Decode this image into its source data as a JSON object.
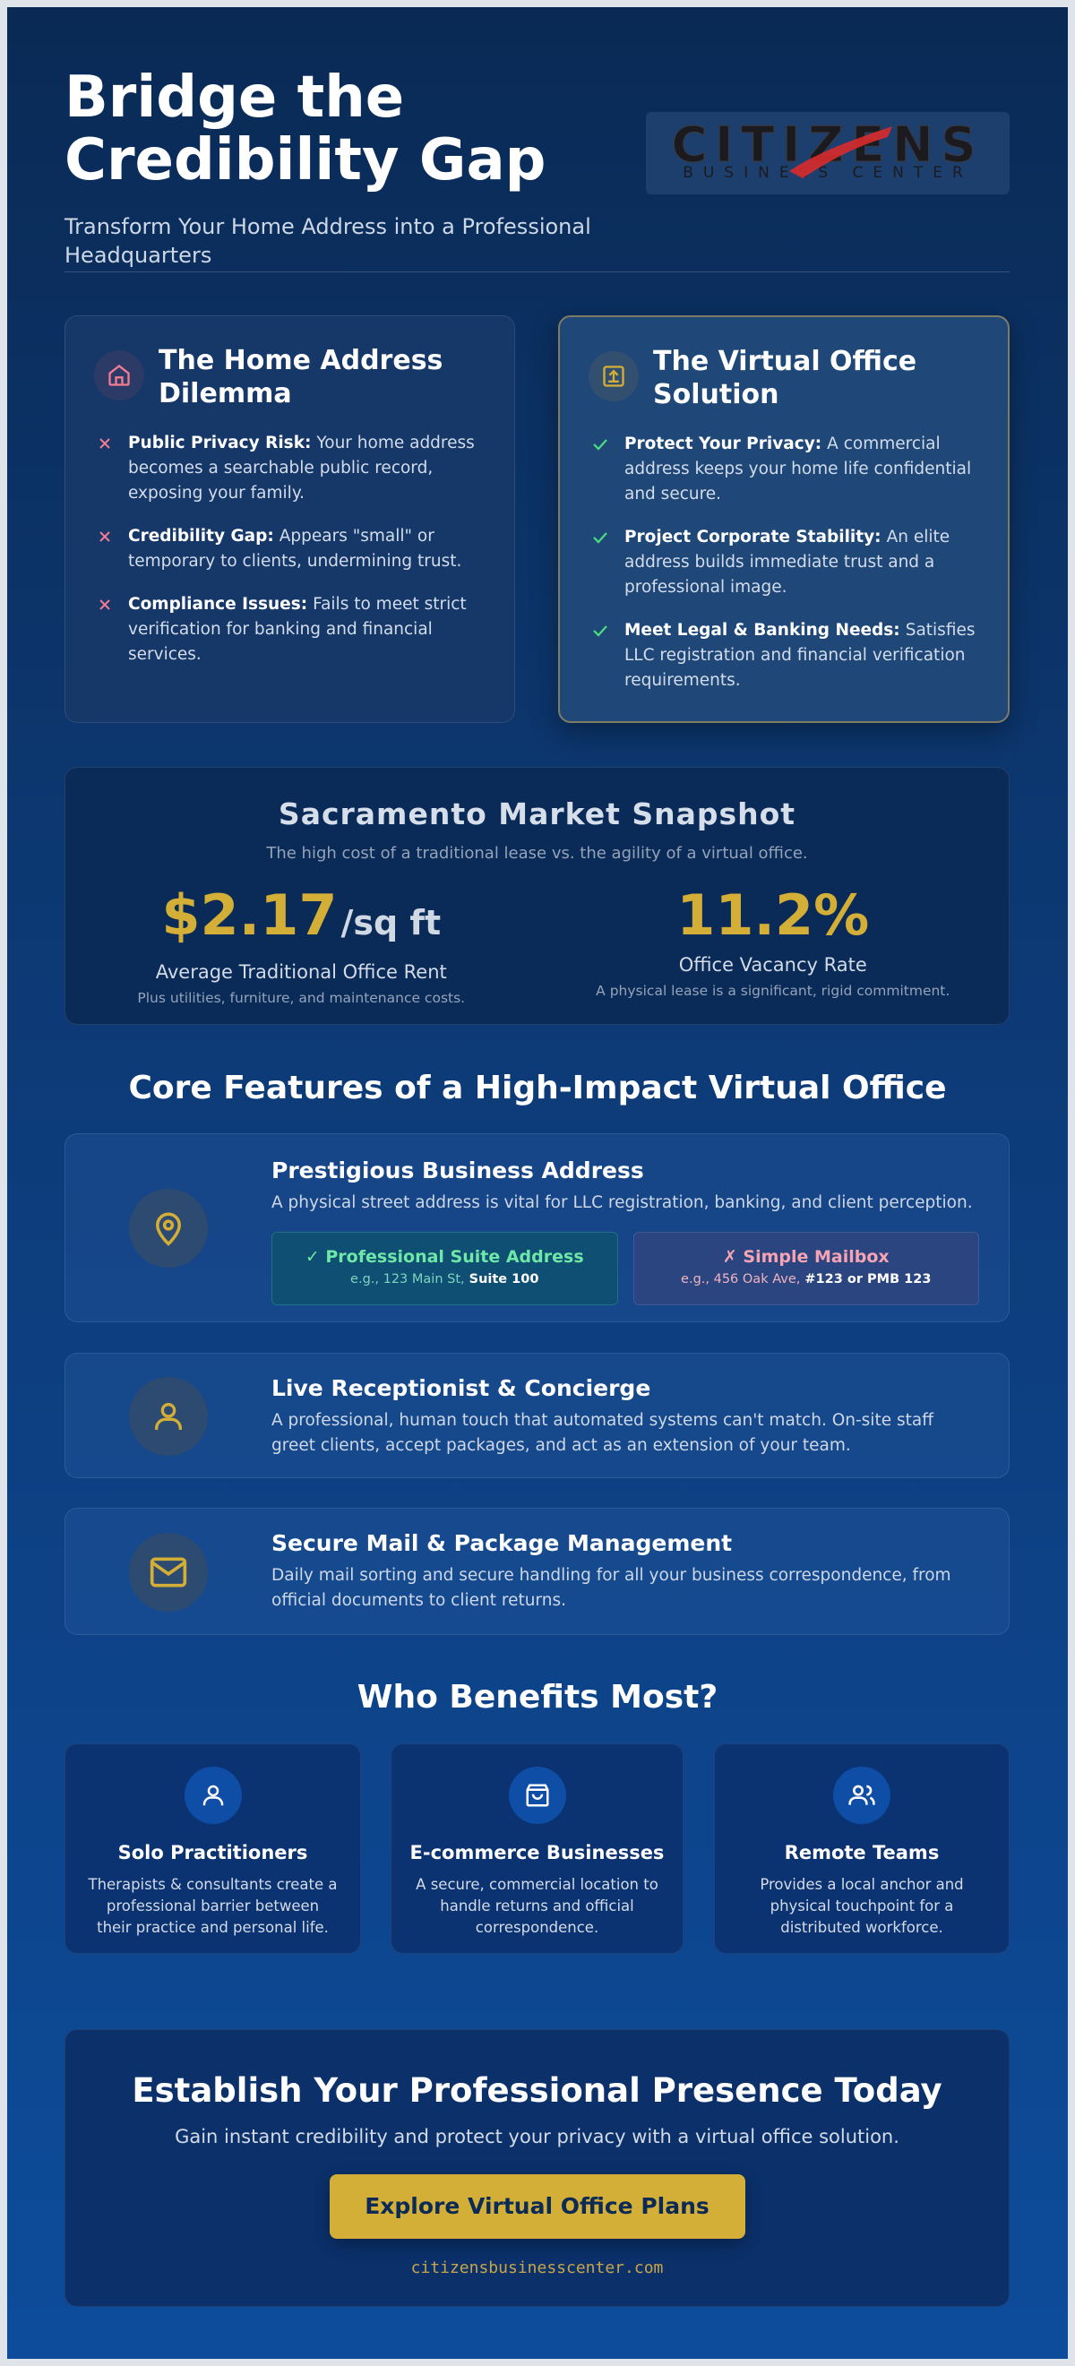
{
  "header": {
    "title": "Bridge the Credibility Gap",
    "subtitle": "Transform Your Home Address into a Professional Headquarters",
    "logo": {
      "name": "CITIZENS",
      "tagline": "BUSINESS CENTER"
    }
  },
  "problem": {
    "title": "The Home Address Dilemma",
    "items": [
      {
        "label": "Public Privacy Risk:",
        "text": "Your home address becomes a searchable public record, exposing your family."
      },
      {
        "label": "Credibility Gap:",
        "text": "Appears \"small\" or temporary to clients, undermining trust."
      },
      {
        "label": "Compliance Issues:",
        "text": "Fails to meet strict verification for banking and financial services."
      }
    ]
  },
  "solution": {
    "title": "The Virtual Office Solution",
    "items": [
      {
        "label": "Protect Your Privacy:",
        "text": "A commercial address keeps your home life confidential and secure."
      },
      {
        "label": "Project Corporate Stability:",
        "text": "An elite address builds immediate trust and a professional image."
      },
      {
        "label": "Meet Legal & Banking Needs:",
        "text": "Satisfies LLC registration and financial verification requirements."
      }
    ]
  },
  "market": {
    "title": "Sacramento Market Snapshot",
    "subtitle": "The high cost of a traditional lease vs. the agility of a virtual office.",
    "stats": [
      {
        "value": "$2.17",
        "unit": "/sq ft",
        "label": "Average Traditional Office Rent",
        "note": "Plus utilities, furniture, and maintenance costs."
      },
      {
        "value": "11.2%",
        "label": "Office Vacancy Rate",
        "note": "A physical lease is a significant, rigid commitment."
      }
    ]
  },
  "features": {
    "title": "Core Features of a High-Impact Virtual Office",
    "items": [
      {
        "title": "Prestigious Business Address",
        "text": "A physical street address is vital for LLC registration, banking, and client perception.",
        "comparison": {
          "good": {
            "label": "✓ Professional Suite Address",
            "example": "e.g., 123 Main St,",
            "highlight": "Suite 100"
          },
          "bad": {
            "label": "✗ Simple Mailbox",
            "example": "e.g., 456 Oak Ave,",
            "highlight": "#123 or PMB 123"
          }
        }
      },
      {
        "title": "Live Receptionist & Concierge",
        "text": "A professional, human touch that automated systems can't match. On-site staff greet clients, accept packages, and act as an extension of your team."
      },
      {
        "title": "Secure Mail & Package Management",
        "text": "Daily mail sorting and secure handling for all your business correspondence, from official documents to client returns."
      }
    ]
  },
  "benefits": {
    "title": "Who Benefits Most?",
    "items": [
      {
        "title": "Solo Practitioners",
        "text": "Therapists & consultants create a professional barrier between their practice and personal life."
      },
      {
        "title": "E-commerce Businesses",
        "text": "A secure, commercial location to handle returns and official correspondence."
      },
      {
        "title": "Remote Teams",
        "text": "Provides a local anchor and physical touchpoint for a distributed workforce."
      }
    ]
  },
  "cta": {
    "title": "Establish Your Professional Presence Today",
    "subtitle": "Gain instant credibility and protect your privacy with a virtual office solution.",
    "button": "Explore Virtual Office Plans",
    "url": "citizensbusinesscenter.com"
  }
}
